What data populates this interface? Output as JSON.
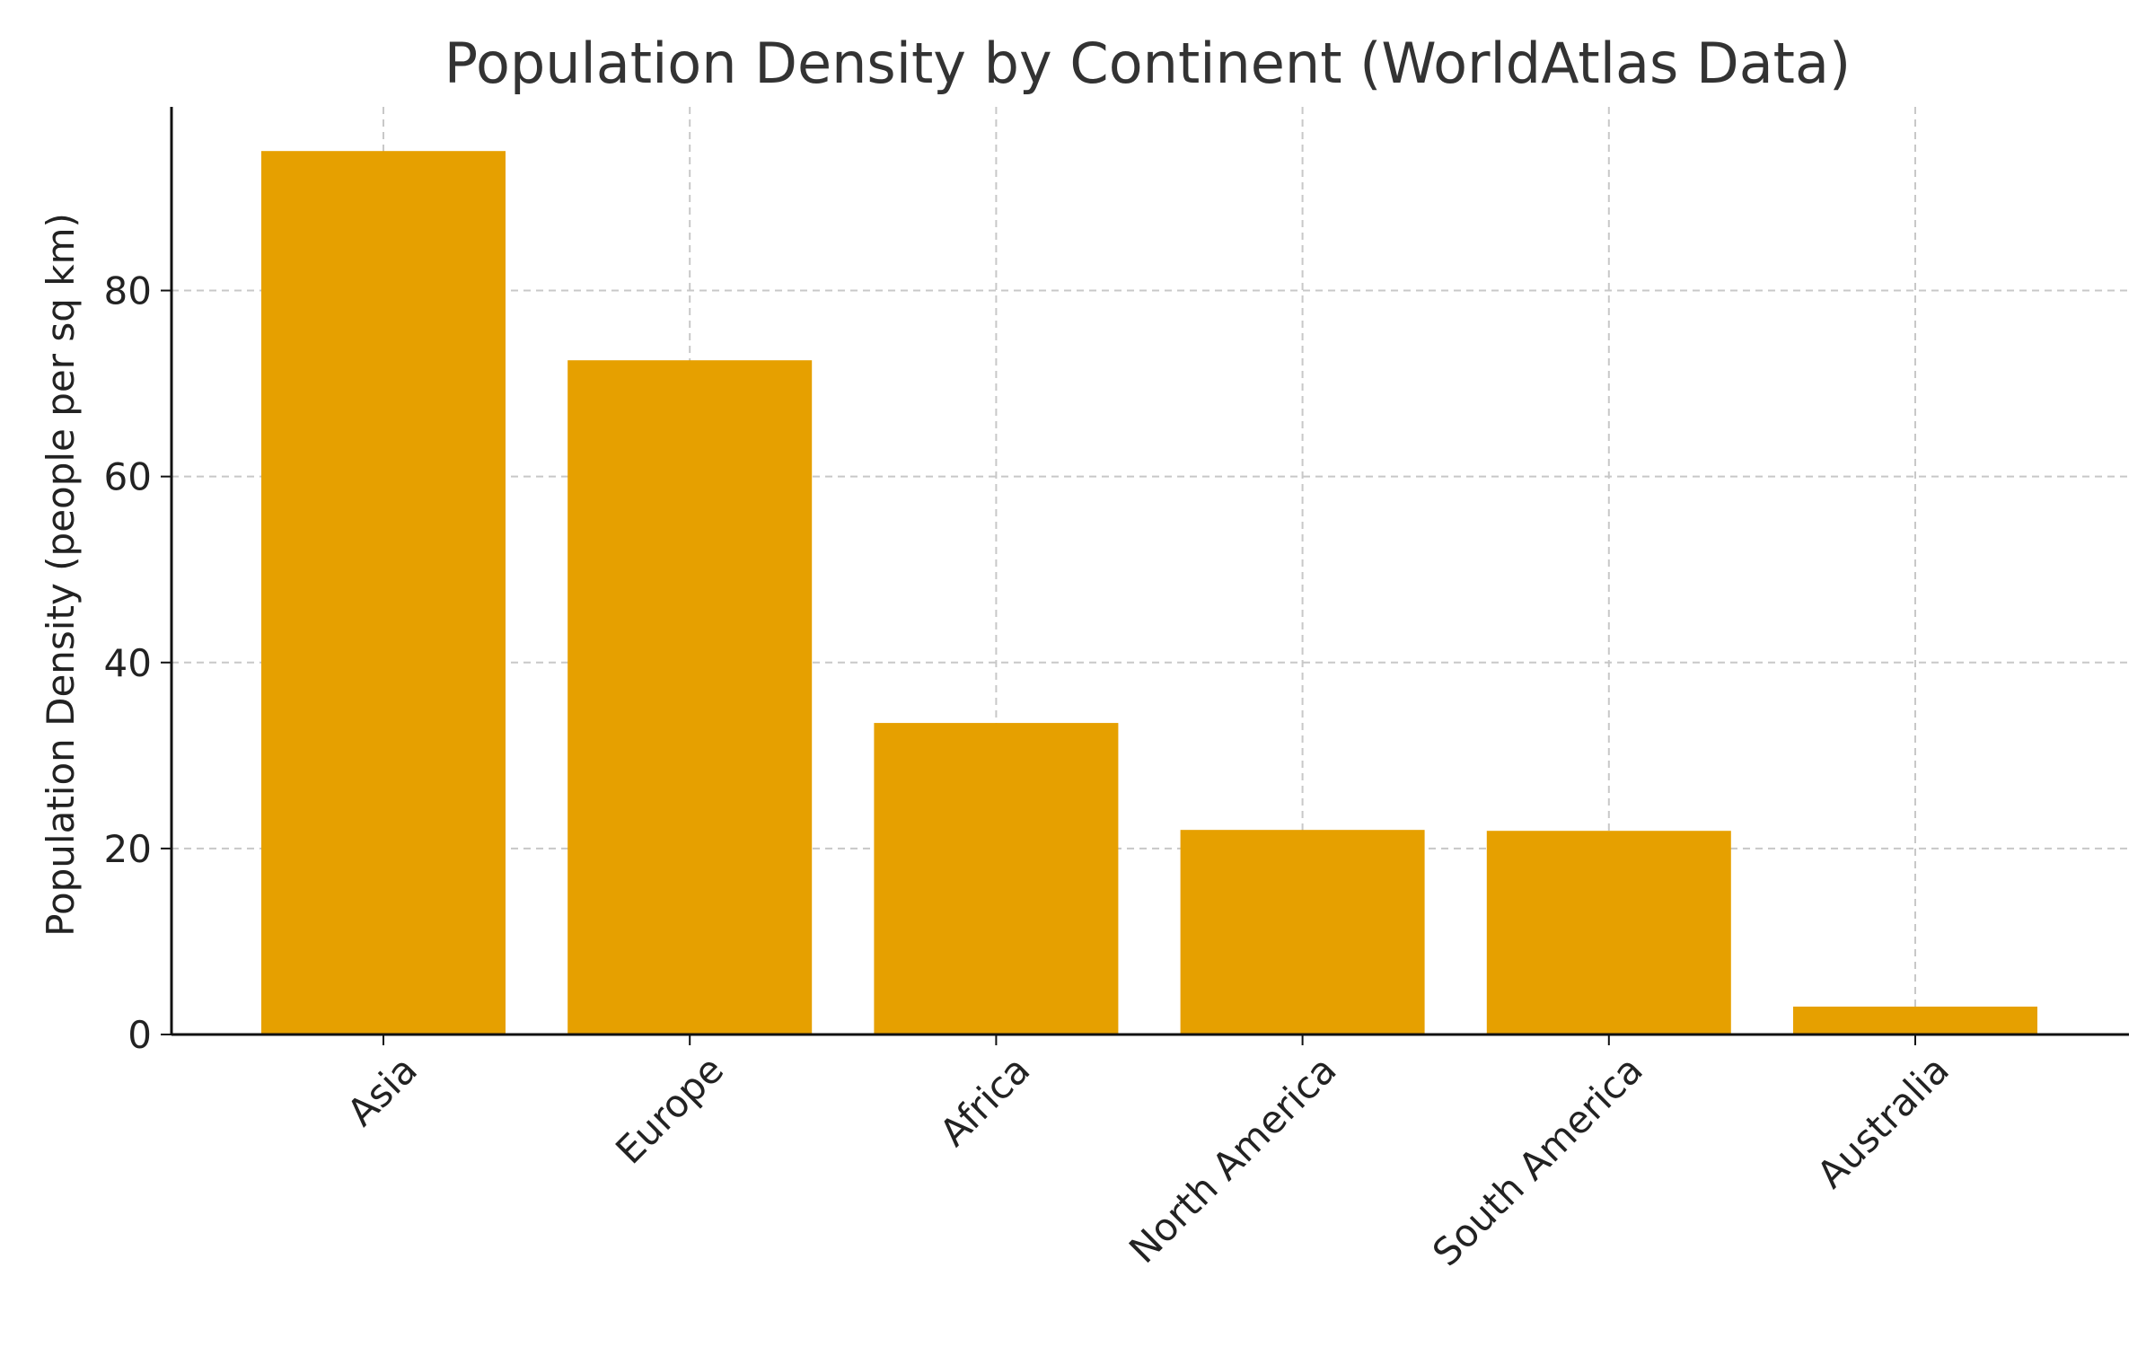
{
  "chart_data": {
    "type": "bar",
    "title": "Population Density by Continent (WorldAtlas Data)",
    "xlabel": "",
    "ylabel": "Population Density (people per sq km)",
    "categories": [
      "Asia",
      "Europe",
      "Africa",
      "North America",
      "South America",
      "Australia"
    ],
    "values": [
      95,
      72.5,
      33.5,
      22,
      21.9,
      3
    ],
    "ylim": [
      0,
      99.75
    ],
    "yticks": [
      0,
      20,
      40,
      60,
      80
    ],
    "grid": true,
    "bar_color": "#E6A000"
  }
}
